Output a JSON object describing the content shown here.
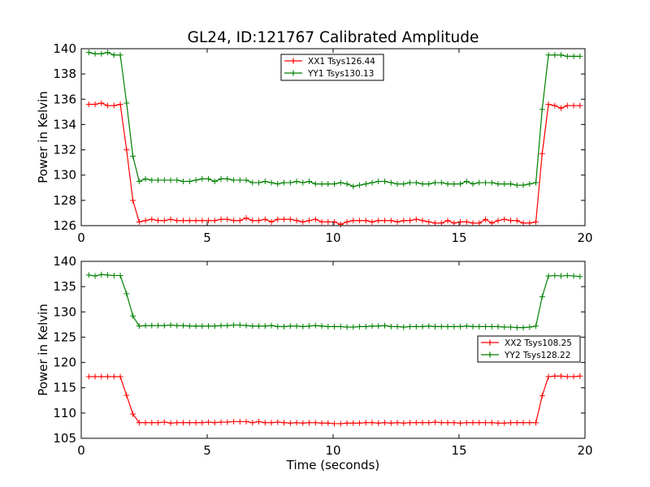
{
  "figure": {
    "title": "GL24, ID:121767 Calibrated Amplitude"
  },
  "chart_data": [
    {
      "type": "line",
      "title": "GL24, ID:121767 Calibrated Amplitude",
      "xlabel": "",
      "ylabel": "Power in Kelvin",
      "xlim": [
        0,
        20
      ],
      "ylim": [
        126,
        140
      ],
      "xticks": [
        0,
        5,
        10,
        15,
        20
      ],
      "yticks": [
        126,
        128,
        130,
        132,
        134,
        136,
        138,
        140
      ],
      "legend_position": "top-center",
      "x": [
        0.3,
        0.55,
        0.8,
        1.05,
        1.3,
        1.55,
        1.8,
        2.05,
        2.3,
        2.55,
        2.8,
        3.05,
        3.3,
        3.55,
        3.8,
        4.05,
        4.3,
        4.55,
        4.8,
        5.05,
        5.3,
        5.55,
        5.8,
        6.05,
        6.3,
        6.55,
        6.8,
        7.05,
        7.3,
        7.55,
        7.8,
        8.05,
        8.3,
        8.55,
        8.8,
        9.05,
        9.3,
        9.55,
        9.8,
        10.05,
        10.3,
        10.55,
        10.8,
        11.05,
        11.3,
        11.55,
        11.8,
        12.05,
        12.3,
        12.55,
        12.8,
        13.05,
        13.3,
        13.55,
        13.8,
        14.05,
        14.3,
        14.55,
        14.8,
        15.05,
        15.3,
        15.55,
        15.8,
        16.05,
        16.3,
        16.55,
        16.8,
        17.05,
        17.3,
        17.55,
        17.8,
        18.05,
        18.3,
        18.55,
        18.8,
        19.05,
        19.3,
        19.55,
        19.8
      ],
      "series": [
        {
          "name": "XX1 Tsys126.44",
          "color": "#ff0000",
          "values": [
            135.6,
            135.6,
            135.7,
            135.5,
            135.5,
            135.6,
            132.0,
            128.0,
            126.3,
            126.4,
            126.5,
            126.4,
            126.4,
            126.5,
            126.4,
            126.4,
            126.4,
            126.4,
            126.4,
            126.4,
            126.4,
            126.5,
            126.5,
            126.4,
            126.4,
            126.6,
            126.4,
            126.4,
            126.5,
            126.3,
            126.5,
            126.5,
            126.5,
            126.4,
            126.3,
            126.4,
            126.5,
            126.3,
            126.3,
            126.3,
            126.1,
            126.3,
            126.4,
            126.4,
            126.4,
            126.3,
            126.4,
            126.4,
            126.4,
            126.3,
            126.4,
            126.4,
            126.5,
            126.4,
            126.3,
            126.2,
            126.2,
            126.4,
            126.2,
            126.3,
            126.3,
            126.2,
            126.2,
            126.5,
            126.2,
            126.4,
            126.5,
            126.4,
            126.4,
            126.2,
            126.2,
            126.3,
            131.7,
            135.6,
            135.5,
            135.3,
            135.5,
            135.5,
            135.5
          ]
        },
        {
          "name": "YY1 Tsys130.13",
          "color": "#008000",
          "values": [
            139.7,
            139.6,
            139.6,
            139.7,
            139.5,
            139.5,
            135.7,
            131.5,
            129.5,
            129.7,
            129.6,
            129.6,
            129.6,
            129.6,
            129.6,
            129.5,
            129.5,
            129.6,
            129.7,
            129.7,
            129.5,
            129.7,
            129.7,
            129.6,
            129.6,
            129.6,
            129.4,
            129.4,
            129.5,
            129.4,
            129.3,
            129.4,
            129.4,
            129.5,
            129.4,
            129.5,
            129.3,
            129.3,
            129.3,
            129.3,
            129.4,
            129.3,
            129.1,
            129.2,
            129.3,
            129.4,
            129.5,
            129.5,
            129.4,
            129.3,
            129.3,
            129.4,
            129.4,
            129.3,
            129.3,
            129.4,
            129.4,
            129.3,
            129.3,
            129.3,
            129.5,
            129.3,
            129.4,
            129.4,
            129.4,
            129.3,
            129.3,
            129.3,
            129.2,
            129.2,
            129.3,
            129.4,
            135.2,
            139.5,
            139.5,
            139.5,
            139.4,
            139.4,
            139.4
          ]
        }
      ]
    },
    {
      "type": "line",
      "title": "",
      "xlabel": "Time (seconds)",
      "ylabel": "Power in Kelvin",
      "xlim": [
        0,
        20
      ],
      "ylim": [
        105,
        140
      ],
      "xticks": [
        0,
        5,
        10,
        15,
        20
      ],
      "yticks": [
        105,
        110,
        115,
        120,
        125,
        130,
        135,
        140
      ],
      "legend_position": "center-right",
      "x": [
        0.3,
        0.55,
        0.8,
        1.05,
        1.3,
        1.55,
        1.8,
        2.05,
        2.3,
        2.55,
        2.8,
        3.05,
        3.3,
        3.55,
        3.8,
        4.05,
        4.3,
        4.55,
        4.8,
        5.05,
        5.3,
        5.55,
        5.8,
        6.05,
        6.3,
        6.55,
        6.8,
        7.05,
        7.3,
        7.55,
        7.8,
        8.05,
        8.3,
        8.55,
        8.8,
        9.05,
        9.3,
        9.55,
        9.8,
        10.05,
        10.3,
        10.55,
        10.8,
        11.05,
        11.3,
        11.55,
        11.8,
        12.05,
        12.3,
        12.55,
        12.8,
        13.05,
        13.3,
        13.55,
        13.8,
        14.05,
        14.3,
        14.55,
        14.8,
        15.05,
        15.3,
        15.55,
        15.8,
        16.05,
        16.3,
        16.55,
        16.8,
        17.05,
        17.3,
        17.55,
        17.8,
        18.05,
        18.3,
        18.55,
        18.8,
        19.05,
        19.3,
        19.55,
        19.8
      ],
      "series": [
        {
          "name": "XX2 Tsys108.25",
          "color": "#ff0000",
          "values": [
            117.2,
            117.2,
            117.2,
            117.2,
            117.2,
            117.2,
            113.5,
            109.8,
            108.1,
            108.1,
            108.1,
            108.1,
            108.2,
            108.0,
            108.1,
            108.1,
            108.1,
            108.1,
            108.1,
            108.2,
            108.1,
            108.2,
            108.2,
            108.3,
            108.3,
            108.3,
            108.1,
            108.3,
            108.1,
            108.1,
            108.2,
            108.1,
            108.0,
            108.1,
            108.0,
            108.1,
            108.1,
            108.0,
            108.0,
            107.9,
            107.9,
            108.0,
            108.0,
            108.0,
            108.1,
            108.1,
            108.0,
            108.1,
            108.0,
            108.1,
            108.0,
            108.1,
            108.1,
            108.1,
            108.1,
            108.2,
            108.1,
            108.1,
            108.1,
            108.0,
            108.1,
            108.1,
            108.1,
            108.1,
            108.1,
            108.0,
            108.0,
            108.1,
            108.1,
            108.1,
            108.1,
            108.1,
            113.4,
            117.2,
            117.3,
            117.3,
            117.2,
            117.2,
            117.3
          ]
        },
        {
          "name": "YY2 Tsys128.22",
          "color": "#008000",
          "values": [
            137.3,
            137.1,
            137.4,
            137.3,
            137.2,
            137.2,
            133.6,
            129.2,
            127.2,
            127.3,
            127.3,
            127.3,
            127.3,
            127.4,
            127.3,
            127.3,
            127.2,
            127.2,
            127.2,
            127.2,
            127.2,
            127.3,
            127.3,
            127.4,
            127.4,
            127.3,
            127.2,
            127.2,
            127.2,
            127.3,
            127.1,
            127.1,
            127.2,
            127.2,
            127.1,
            127.2,
            127.3,
            127.2,
            127.1,
            127.1,
            127.1,
            127.0,
            127.0,
            127.1,
            127.1,
            127.2,
            127.2,
            127.3,
            127.1,
            127.1,
            127.0,
            127.1,
            127.1,
            127.1,
            127.2,
            127.1,
            127.1,
            127.1,
            127.1,
            127.1,
            127.2,
            127.1,
            127.1,
            127.1,
            127.1,
            127.1,
            127.0,
            127.0,
            126.9,
            126.9,
            127.0,
            127.2,
            133.0,
            137.1,
            137.2,
            137.1,
            137.2,
            137.1,
            137.0
          ]
        }
      ]
    }
  ]
}
